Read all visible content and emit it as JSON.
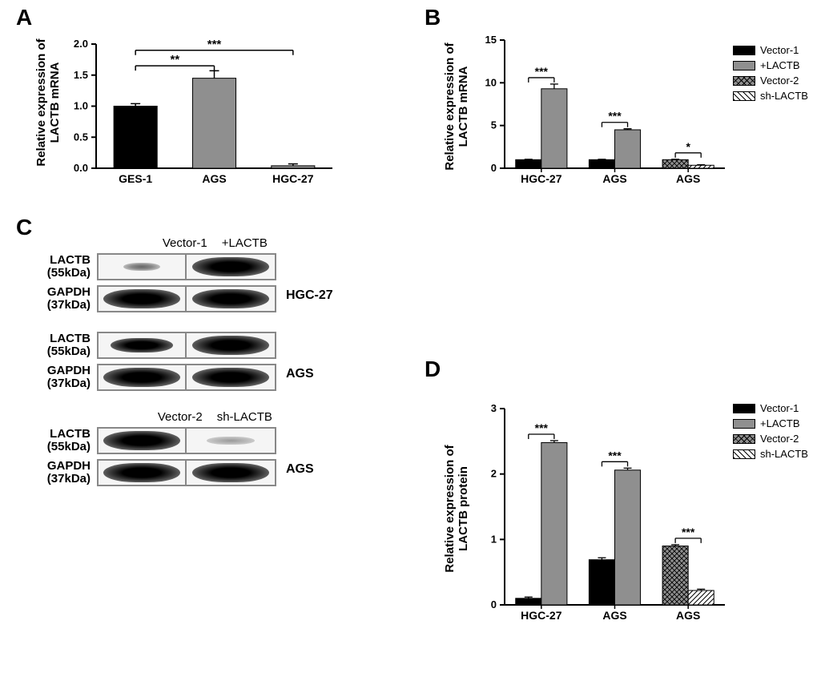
{
  "panelA": {
    "label": "A",
    "type": "bar",
    "ylabel": "Relative expression of\nLACTB mRNA",
    "ylim": [
      0,
      2.0
    ],
    "yticks": [
      0,
      0.5,
      1.0,
      1.5,
      2.0
    ],
    "categories": [
      "GES-1",
      "AGS",
      "HGC-27"
    ],
    "values": [
      1.0,
      1.45,
      0.04
    ],
    "errors": [
      0.04,
      0.12,
      0.03
    ],
    "bar_colors": [
      "#000000",
      "#8f8f8f",
      "#8f8f8f"
    ],
    "sig": [
      {
        "from": 0,
        "to": 1,
        "label": "**"
      },
      {
        "from": 0,
        "to": 2,
        "label": "***"
      }
    ],
    "axis_color": "#000000",
    "bar_width": 0.55
  },
  "panelB": {
    "label": "B",
    "type": "grouped-bar",
    "ylabel": "Relative expression of\nLACTB mRNA",
    "ylim": [
      0,
      15
    ],
    "yticks": [
      0,
      5,
      10,
      15
    ],
    "groups": [
      "HGC-27",
      "AGS",
      "AGS"
    ],
    "series": [
      {
        "name": "Vector-1",
        "color": "#000000",
        "pattern": "solid"
      },
      {
        "name": "+LACTB",
        "color": "#8f8f8f",
        "pattern": "solid"
      },
      {
        "name": "Vector-2",
        "color": "#8f8f8f",
        "pattern": "cross"
      },
      {
        "name": "sh-LACTB",
        "color": "#ffffff",
        "pattern": "diag"
      }
    ],
    "group_values": [
      {
        "left": {
          "series": 0,
          "value": 1.0,
          "err": 0.05
        },
        "right": {
          "series": 1,
          "value": 9.3,
          "err": 0.55
        },
        "sig": "***"
      },
      {
        "left": {
          "series": 0,
          "value": 1.0,
          "err": 0.05
        },
        "right": {
          "series": 1,
          "value": 4.5,
          "err": 0.12
        },
        "sig": "***"
      },
      {
        "left": {
          "series": 2,
          "value": 1.0,
          "err": 0.05
        },
        "right": {
          "series": 3,
          "value": 0.35,
          "err": 0.06
        },
        "sig": "*"
      }
    ],
    "bar_width": 0.35
  },
  "panelC": {
    "label": "C",
    "blocks": [
      {
        "col_labels": [
          "Vector-1",
          "+LACTB"
        ],
        "side": "HGC-27",
        "rows": [
          {
            "label": "LACTB",
            "kda": "(55kDa)",
            "bands": [
              "weak",
              "strong"
            ]
          },
          {
            "label": "GAPDH",
            "kda": "(37kDa)",
            "bands": [
              "strong",
              "strong"
            ]
          }
        ]
      },
      {
        "col_labels": null,
        "side": "AGS",
        "rows": [
          {
            "label": "LACTB",
            "kda": "(55kDa)",
            "bands": [
              "med",
              "strong"
            ]
          },
          {
            "label": "GAPDH",
            "kda": "(37kDa)",
            "bands": [
              "strong",
              "strong"
            ]
          }
        ]
      },
      {
        "col_labels": [
          "Vector-2",
          "sh-LACTB"
        ],
        "side": "AGS",
        "rows": [
          {
            "label": "LACTB",
            "kda": "(55kDa)",
            "bands": [
              "strong",
              "faint"
            ]
          },
          {
            "label": "GAPDH",
            "kda": "(37kDa)",
            "bands": [
              "strong",
              "strong"
            ]
          }
        ]
      }
    ]
  },
  "panelD": {
    "label": "D",
    "type": "grouped-bar",
    "ylabel": "Relative expression of\nLACTB protein",
    "ylim": [
      0,
      3
    ],
    "yticks": [
      0,
      1,
      2,
      3
    ],
    "groups": [
      "HGC-27",
      "AGS",
      "AGS"
    ],
    "series": [
      {
        "name": "Vector-1",
        "color": "#000000",
        "pattern": "solid"
      },
      {
        "name": "+LACTB",
        "color": "#8f8f8f",
        "pattern": "solid"
      },
      {
        "name": "Vector-2",
        "color": "#8f8f8f",
        "pattern": "cross"
      },
      {
        "name": "sh-LACTB",
        "color": "#ffffff",
        "pattern": "diag"
      }
    ],
    "group_values": [
      {
        "left": {
          "series": 0,
          "value": 0.1,
          "err": 0.02
        },
        "right": {
          "series": 1,
          "value": 2.48,
          "err": 0.03
        },
        "sig": "***"
      },
      {
        "left": {
          "series": 0,
          "value": 0.69,
          "err": 0.03
        },
        "right": {
          "series": 1,
          "value": 2.06,
          "err": 0.03
        },
        "sig": "***"
      },
      {
        "left": {
          "series": 2,
          "value": 0.9,
          "err": 0.02
        },
        "right": {
          "series": 3,
          "value": 0.22,
          "err": 0.02
        },
        "sig": "***"
      }
    ],
    "bar_width": 0.35
  }
}
